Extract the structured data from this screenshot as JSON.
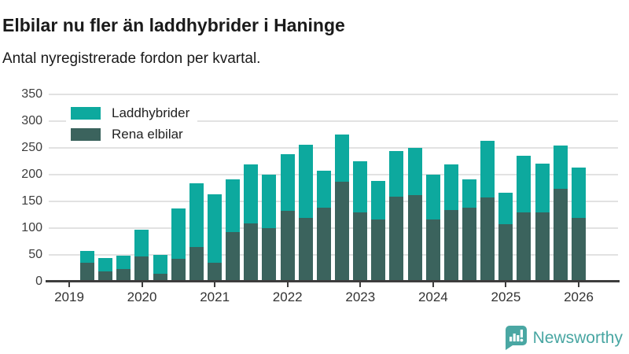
{
  "header": {
    "title": "Elbilar nu fler än laddhybrider i Haninge",
    "subtitle": "Antal nyregistrerade fordon per kvartal."
  },
  "chart_data": {
    "type": "bar",
    "stacked": true,
    "title": "Elbilar nu fler än laddhybrider i Haninge",
    "subtitle": "Antal nyregistrerade fordon per kvartal.",
    "ylabel": "",
    "xlabel": "",
    "ylim": [
      0,
      350
    ],
    "yticks": [
      0,
      50,
      100,
      150,
      200,
      250,
      300,
      350
    ],
    "grid": true,
    "legend_position": "top-left",
    "year_ticks": [
      "2019",
      "2020",
      "2021",
      "2022",
      "2023",
      "2024",
      "2025",
      "2026"
    ],
    "quarters": [
      "2019 Q2",
      "2019 Q3",
      "2019 Q4",
      "2020 Q1",
      "2020 Q2",
      "2020 Q3",
      "2020 Q4",
      "2021 Q1",
      "2021 Q2",
      "2021 Q3",
      "2021 Q4",
      "2022 Q1",
      "2022 Q2",
      "2022 Q3",
      "2022 Q4",
      "2023 Q1",
      "2023 Q2",
      "2023 Q3",
      "2023 Q4",
      "2024 Q1",
      "2024 Q2",
      "2024 Q3",
      "2024 Q4",
      "2025 Q1",
      "2025 Q2",
      "2025 Q3",
      "2025 Q4",
      "2026 Q1"
    ],
    "series": [
      {
        "name": "Laddhybrider",
        "color": "#0da99e",
        "values": [
          23,
          26,
          25,
          51,
          36,
          94,
          119,
          128,
          98,
          110,
          100,
          106,
          137,
          68,
          89,
          95,
          73,
          85,
          89,
          83,
          85,
          54,
          105,
          60,
          105,
          92,
          81,
          95
        ]
      },
      {
        "name": "Rena elbilar",
        "color": "#3b635d",
        "values": [
          34,
          18,
          23,
          46,
          14,
          42,
          64,
          35,
          92,
          108,
          100,
          131,
          118,
          138,
          186,
          129,
          115,
          158,
          161,
          116,
          133,
          137,
          157,
          106,
          129,
          128,
          173,
          118
        ]
      }
    ],
    "stack_order_bottom_to_top": [
      "Rena elbilar",
      "Laddhybrider"
    ]
  },
  "branding": {
    "logo_text": "Newsworthy",
    "logo_color": "#48a6a2",
    "logo_icon": "speech-bubble-bar-chart-icon"
  },
  "colors": {
    "laddhybrider": "#0da99e",
    "rena_elbilar": "#3b635d",
    "grid": "#e2e2e2",
    "axis": "#3d3d3d",
    "text": "#1a1a1a"
  }
}
